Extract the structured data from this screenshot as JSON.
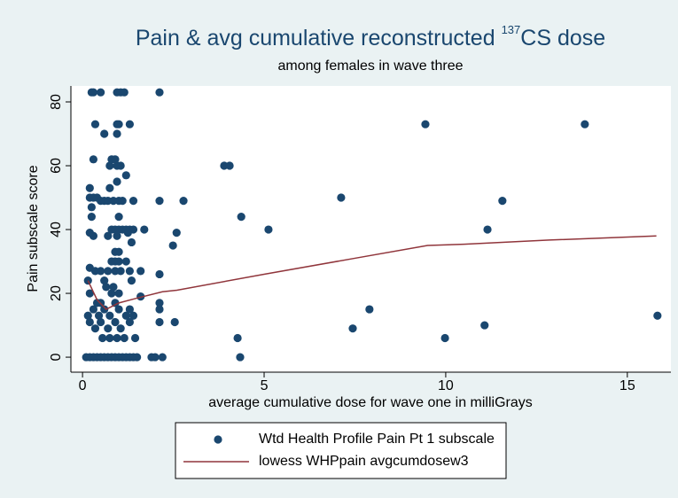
{
  "chart_data": {
    "type": "scatter",
    "title": [
      {
        "text": "Pain & avg cumulative reconstructed "
      },
      {
        "text": "137",
        "sup": true
      },
      {
        "text": "CS dose"
      }
    ],
    "subtitle": "among females in wave three",
    "x_label": "average cumulative dose for wave one in milliGrays",
    "y_label": "Pain subscale score",
    "xlim": [
      -0.32,
      16.2
    ],
    "ylim": [
      -4.7,
      85
    ],
    "xticks": [
      0,
      5,
      10,
      15
    ],
    "yticks": [
      0,
      20,
      40,
      60,
      80
    ],
    "grid": false,
    "series": [
      {
        "name": "Wtd Health Profile Pain Pt 1 subscale",
        "type": "scatter",
        "color": "#1a476f",
        "x": [
          0.1,
          0.2,
          0.3,
          0.4,
          0.5,
          0.6,
          0.7,
          0.8,
          0.9,
          1.0,
          1.1,
          1.2,
          1.3,
          1.4,
          1.5,
          1.9,
          2.0,
          2.2,
          4.34,
          0.25,
          0.3,
          0.5,
          0.95,
          1.05,
          1.15,
          2.12,
          0.35,
          0.95,
          1.0,
          1.3,
          9.44,
          13.83,
          0.6,
          0.95,
          0.3,
          0.8,
          0.9,
          0.75,
          0.95,
          1.05,
          3.9,
          4.05,
          1.2,
          0.95,
          0.2,
          0.75,
          0.2,
          0.3,
          0.4,
          7.12,
          0.5,
          0.6,
          0.7,
          0.85,
          1.0,
          1.1,
          1.4,
          2.12,
          2.78,
          11.56,
          0.25,
          0.25,
          1.0,
          4.37,
          0.8,
          0.9,
          1.0,
          1.1,
          1.2,
          1.3,
          1.4,
          1.7,
          5.12,
          11.15,
          0.2,
          1.25,
          2.59,
          0.3,
          0.7,
          0.95,
          1.35,
          2.49,
          0.9,
          1.0,
          0.8,
          0.9,
          1.0,
          1.2,
          0.2,
          0.35,
          0.5,
          0.7,
          0.9,
          1.05,
          1.3,
          1.6,
          2.12,
          0.15,
          0.6,
          1.35,
          0.65,
          0.85,
          0.2,
          0.8,
          1.0,
          1.6,
          0.4,
          0.5,
          0.9,
          2.12,
          0.3,
          0.6,
          1.0,
          1.3,
          2.12,
          7.9,
          0.15,
          0.45,
          0.75,
          1.2,
          1.4,
          15.83,
          0.2,
          0.5,
          0.9,
          1.3,
          2.12,
          2.54,
          11.07,
          0.35,
          0.7,
          1.05,
          7.44,
          0.55,
          0.75,
          0.95,
          1.15,
          1.45,
          4.27,
          9.98
        ],
        "values": [
          0,
          0,
          0,
          0,
          0,
          0,
          0,
          0,
          0,
          0,
          0,
          0,
          0,
          0,
          0,
          0,
          0,
          0,
          0,
          83,
          83,
          83,
          83,
          83,
          83,
          83,
          73,
          73,
          73,
          73,
          73,
          73,
          70,
          70,
          62,
          62,
          62,
          60,
          60,
          60,
          60,
          60,
          57,
          55,
          53,
          53,
          50,
          50,
          50,
          50,
          49,
          49,
          49,
          49,
          49,
          49,
          49,
          49,
          49,
          49,
          47,
          44,
          44,
          44,
          40,
          40,
          40,
          40,
          40,
          40,
          40,
          40,
          40,
          40,
          39,
          39,
          39,
          38,
          38,
          38,
          36,
          35,
          33,
          33,
          30,
          30,
          30,
          30,
          28,
          27,
          27,
          27,
          27,
          27,
          27,
          27,
          26,
          24,
          24,
          24,
          22,
          22,
          20,
          20,
          20,
          19,
          17,
          17,
          17,
          17,
          15,
          15,
          15,
          15,
          15,
          15,
          13,
          13,
          13,
          13,
          13,
          13,
          11,
          11,
          11,
          11,
          11,
          11,
          10,
          9,
          9,
          9,
          9,
          6,
          6,
          6,
          6,
          6,
          6,
          6
        ]
      },
      {
        "name": "lowess WHPpain avgcumdosew3",
        "type": "line",
        "color": "#90353b",
        "x": [
          0.15,
          0.4,
          0.65,
          1.0,
          1.5,
          2.2,
          2.6,
          5.0,
          7.5,
          9.5,
          10.5,
          12.85,
          15.8
        ],
        "values": [
          24,
          18,
          15,
          17,
          18.5,
          20.5,
          21,
          26,
          31,
          35,
          35.4,
          36.7,
          38
        ]
      }
    ],
    "legend": "bottom"
  }
}
